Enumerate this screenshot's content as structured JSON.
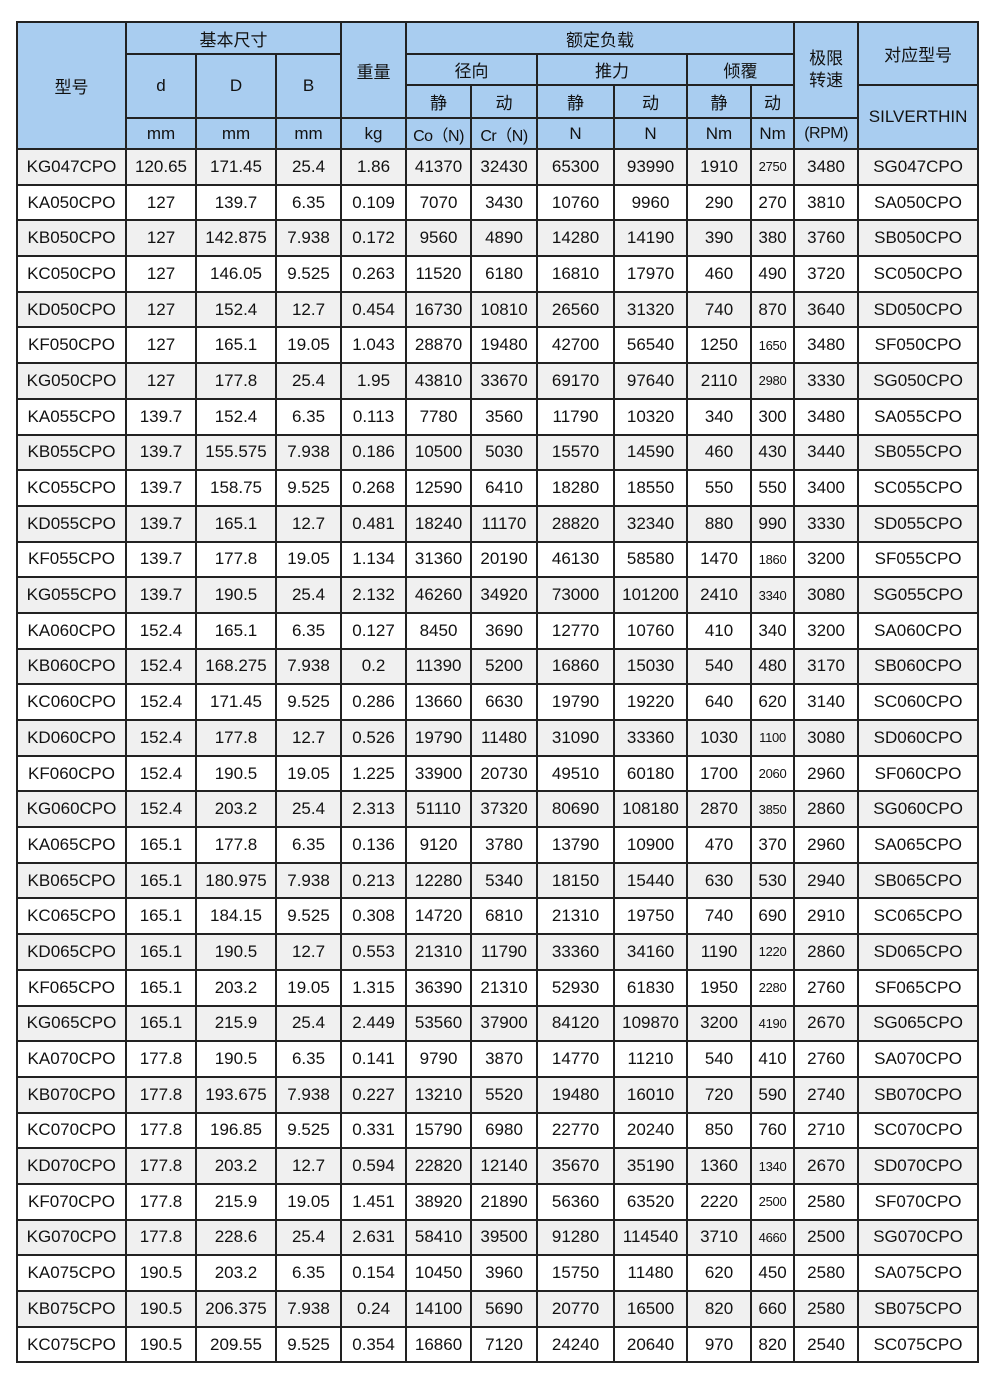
{
  "header": {
    "model": "型号",
    "basic_dims": "基本尺寸",
    "d": "d",
    "D": "D",
    "B": "B",
    "weight": "重量",
    "rated_load": "额定负载",
    "radial": "径向",
    "thrust": "推力",
    "moment": "倾覆",
    "static": "静",
    "dynamic": "动",
    "speed_limit": "极限\n转速",
    "equivalent": "对应型号",
    "silverthin": "SILVERTHIN",
    "units": [
      "mm",
      "mm",
      "mm",
      "kg",
      "Co（N)",
      "Cr（N)",
      "N",
      "N",
      "Nm",
      "Nm",
      "(RPM)"
    ]
  },
  "colors": {
    "header_bg": "#a9cdf0",
    "alt_row_bg": "#f0f0f0",
    "border": "#222222"
  },
  "rows": [
    [
      "KG047CPO",
      "120.65",
      "171.45",
      "25.4",
      "1.86",
      "41370",
      "32430",
      "65300",
      "93990",
      "1910",
      "2750",
      "3480",
      "SG047CPO"
    ],
    [
      "KA050CPO",
      "127",
      "139.7",
      "6.35",
      "0.109",
      "7070",
      "3430",
      "10760",
      "9960",
      "290",
      "270",
      "3810",
      "SA050CPO"
    ],
    [
      "KB050CPO",
      "127",
      "142.875",
      "7.938",
      "0.172",
      "9560",
      "4890",
      "14280",
      "14190",
      "390",
      "380",
      "3760",
      "SB050CPO"
    ],
    [
      "KC050CPO",
      "127",
      "146.05",
      "9.525",
      "0.263",
      "11520",
      "6180",
      "16810",
      "17970",
      "460",
      "490",
      "3720",
      "SC050CPO"
    ],
    [
      "KD050CPO",
      "127",
      "152.4",
      "12.7",
      "0.454",
      "16730",
      "10810",
      "26560",
      "31320",
      "740",
      "870",
      "3640",
      "SD050CPO"
    ],
    [
      "KF050CPO",
      "127",
      "165.1",
      "19.05",
      "1.043",
      "28870",
      "19480",
      "42700",
      "56540",
      "1250",
      "1650",
      "3480",
      "SF050CPO"
    ],
    [
      "KG050CPO",
      "127",
      "177.8",
      "25.4",
      "1.95",
      "43810",
      "33670",
      "69170",
      "97640",
      "2110",
      "2980",
      "3330",
      "SG050CPO"
    ],
    [
      "KA055CPO",
      "139.7",
      "152.4",
      "6.35",
      "0.113",
      "7780",
      "3560",
      "11790",
      "10320",
      "340",
      "300",
      "3480",
      "SA055CPO"
    ],
    [
      "KB055CPO",
      "139.7",
      "155.575",
      "7.938",
      "0.186",
      "10500",
      "5030",
      "15570",
      "14590",
      "460",
      "430",
      "3440",
      "SB055CPO"
    ],
    [
      "KC055CPO",
      "139.7",
      "158.75",
      "9.525",
      "0.268",
      "12590",
      "6410",
      "18280",
      "18550",
      "550",
      "550",
      "3400",
      "SC055CPO"
    ],
    [
      "KD055CPO",
      "139.7",
      "165.1",
      "12.7",
      "0.481",
      "18240",
      "11170",
      "28820",
      "32340",
      "880",
      "990",
      "3330",
      "SD055CPO"
    ],
    [
      "KF055CPO",
      "139.7",
      "177.8",
      "19.05",
      "1.134",
      "31360",
      "20190",
      "46130",
      "58580",
      "1470",
      "1860",
      "3200",
      "SF055CPO"
    ],
    [
      "KG055CPO",
      "139.7",
      "190.5",
      "25.4",
      "2.132",
      "46260",
      "34920",
      "73000",
      "101200",
      "2410",
      "3340",
      "3080",
      "SG055CPO"
    ],
    [
      "KA060CPO",
      "152.4",
      "165.1",
      "6.35",
      "0.127",
      "8450",
      "3690",
      "12770",
      "10760",
      "410",
      "340",
      "3200",
      "SA060CPO"
    ],
    [
      "KB060CPO",
      "152.4",
      "168.275",
      "7.938",
      "0.2",
      "11390",
      "5200",
      "16860",
      "15030",
      "540",
      "480",
      "3170",
      "SB060CPO"
    ],
    [
      "KC060CPO",
      "152.4",
      "171.45",
      "9.525",
      "0.286",
      "13660",
      "6630",
      "19790",
      "19220",
      "640",
      "620",
      "3140",
      "SC060CPO"
    ],
    [
      "KD060CPO",
      "152.4",
      "177.8",
      "12.7",
      "0.526",
      "19790",
      "11480",
      "31090",
      "33360",
      "1030",
      "1100",
      "3080",
      "SD060CPO"
    ],
    [
      "KF060CPO",
      "152.4",
      "190.5",
      "19.05",
      "1.225",
      "33900",
      "20730",
      "49510",
      "60180",
      "1700",
      "2060",
      "2960",
      "SF060CPO"
    ],
    [
      "KG060CPO",
      "152.4",
      "203.2",
      "25.4",
      "2.313",
      "51110",
      "37320",
      "80690",
      "108180",
      "2870",
      "3850",
      "2860",
      "SG060CPO"
    ],
    [
      "KA065CPO",
      "165.1",
      "177.8",
      "6.35",
      "0.136",
      "9120",
      "3780",
      "13790",
      "10900",
      "470",
      "370",
      "2960",
      "SA065CPO"
    ],
    [
      "KB065CPO",
      "165.1",
      "180.975",
      "7.938",
      "0.213",
      "12280",
      "5340",
      "18150",
      "15440",
      "630",
      "530",
      "2940",
      "SB065CPO"
    ],
    [
      "KC065CPO",
      "165.1",
      "184.15",
      "9.525",
      "0.308",
      "14720",
      "6810",
      "21310",
      "19750",
      "740",
      "690",
      "2910",
      "SC065CPO"
    ],
    [
      "KD065CPO",
      "165.1",
      "190.5",
      "12.7",
      "0.553",
      "21310",
      "11790",
      "33360",
      "34160",
      "1190",
      "1220",
      "2860",
      "SD065CPO"
    ],
    [
      "KF065CPO",
      "165.1",
      "203.2",
      "19.05",
      "1.315",
      "36390",
      "21310",
      "52930",
      "61830",
      "1950",
      "2280",
      "2760",
      "SF065CPO"
    ],
    [
      "KG065CPO",
      "165.1",
      "215.9",
      "25.4",
      "2.449",
      "53560",
      "37900",
      "84120",
      "109870",
      "3200",
      "4190",
      "2670",
      "SG065CPO"
    ],
    [
      "KA070CPO",
      "177.8",
      "190.5",
      "6.35",
      "0.141",
      "9790",
      "3870",
      "14770",
      "11210",
      "540",
      "410",
      "2760",
      "SA070CPO"
    ],
    [
      "KB070CPO",
      "177.8",
      "193.675",
      "7.938",
      "0.227",
      "13210",
      "5520",
      "19480",
      "16010",
      "720",
      "590",
      "2740",
      "SB070CPO"
    ],
    [
      "KC070CPO",
      "177.8",
      "196.85",
      "9.525",
      "0.331",
      "15790",
      "6980",
      "22770",
      "20240",
      "850",
      "760",
      "2710",
      "SC070CPO"
    ],
    [
      "KD070CPO",
      "177.8",
      "203.2",
      "12.7",
      "0.594",
      "22820",
      "12140",
      "35670",
      "35190",
      "1360",
      "1340",
      "2670",
      "SD070CPO"
    ],
    [
      "KF070CPO",
      "177.8",
      "215.9",
      "19.05",
      "1.451",
      "38920",
      "21890",
      "56360",
      "63520",
      "2220",
      "2500",
      "2580",
      "SF070CPO"
    ],
    [
      "KG070CPO",
      "177.8",
      "228.6",
      "25.4",
      "2.631",
      "58410",
      "39500",
      "91280",
      "114540",
      "3710",
      "4660",
      "2500",
      "SG070CPO"
    ],
    [
      "KA075CPO",
      "190.5",
      "203.2",
      "6.35",
      "0.154",
      "10450",
      "3960",
      "15750",
      "11480",
      "620",
      "450",
      "2580",
      "SA075CPO"
    ],
    [
      "KB075CPO",
      "190.5",
      "206.375",
      "7.938",
      "0.24",
      "14100",
      "5690",
      "20770",
      "16500",
      "820",
      "660",
      "2580",
      "SB075CPO"
    ],
    [
      "KC075CPO",
      "190.5",
      "209.55",
      "9.525",
      "0.354",
      "16860",
      "7120",
      "24240",
      "20640",
      "970",
      "820",
      "2540",
      "SC075CPO"
    ]
  ]
}
